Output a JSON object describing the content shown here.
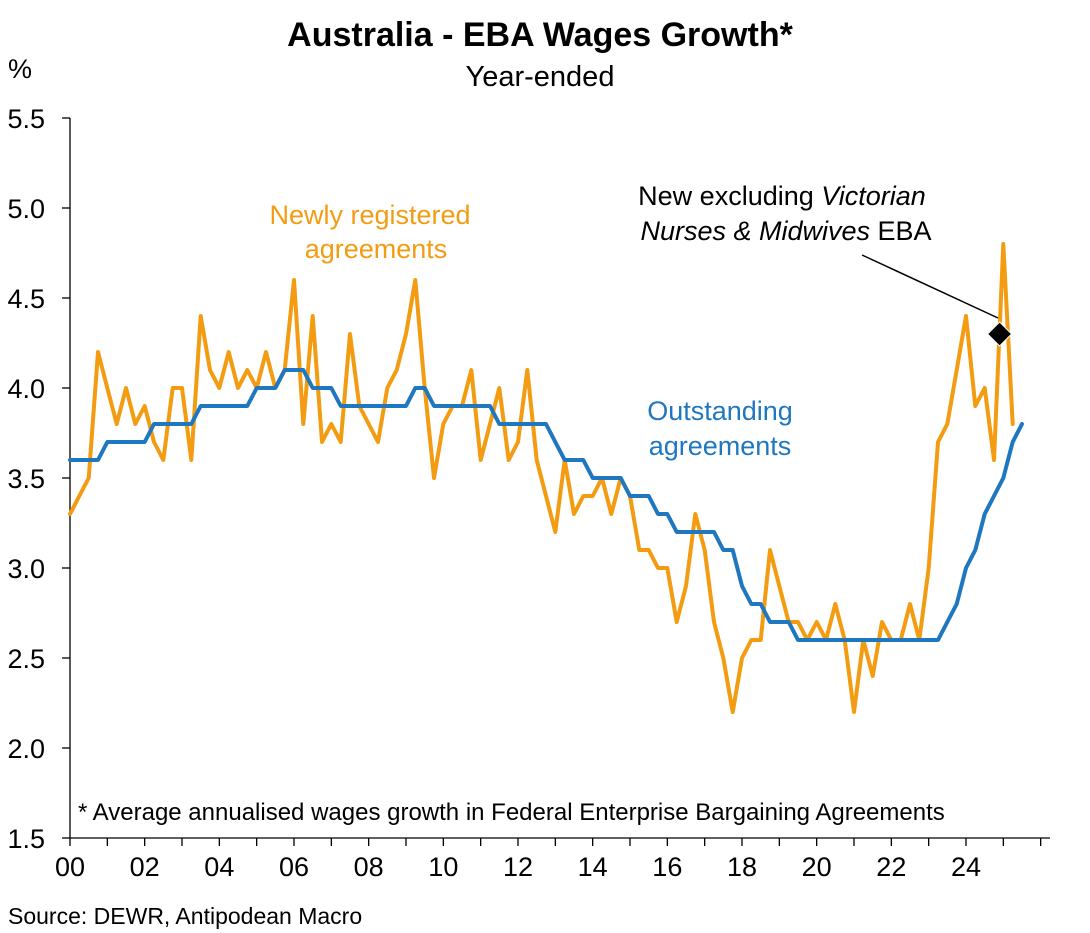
{
  "chart_data": {
    "type": "line",
    "title": "Australia - EBA Wages Growth*",
    "subtitle": "Year-ended",
    "ylabel": "%",
    "ylim": [
      1.5,
      5.5
    ],
    "yticks": [
      "1.5",
      "2.0",
      "2.5",
      "3.0",
      "3.5",
      "4.0",
      "4.5",
      "5.0",
      "5.5"
    ],
    "xlim": [
      2000.0,
      2026.25
    ],
    "xticks": [
      {
        "x": 2000,
        "label": "00"
      },
      {
        "x": 2002,
        "label": "02"
      },
      {
        "x": 2004,
        "label": "04"
      },
      {
        "x": 2006,
        "label": "06"
      },
      {
        "x": 2008,
        "label": "08"
      },
      {
        "x": 2010,
        "label": "10"
      },
      {
        "x": 2012,
        "label": "12"
      },
      {
        "x": 2014,
        "label": "14"
      },
      {
        "x": 2016,
        "label": "16"
      },
      {
        "x": 2018,
        "label": "18"
      },
      {
        "x": 2020,
        "label": "20"
      },
      {
        "x": 2022,
        "label": "22"
      },
      {
        "x": 2024,
        "label": "24"
      }
    ],
    "grid": false,
    "legend": "none",
    "x_start": 2000.0,
    "x_step": 0.25,
    "series": [
      {
        "name": "Newly registered agreements",
        "color": "#F39C12",
        "values": [
          3.3,
          3.4,
          3.5,
          4.2,
          4.0,
          3.8,
          4.0,
          3.8,
          3.9,
          3.7,
          3.6,
          4.0,
          4.0,
          3.6,
          4.4,
          4.1,
          4.0,
          4.2,
          4.0,
          4.1,
          4.0,
          4.2,
          4.0,
          4.1,
          4.6,
          3.8,
          4.4,
          3.7,
          3.8,
          3.7,
          4.3,
          3.9,
          3.8,
          3.7,
          4.0,
          4.1,
          4.3,
          4.6,
          4.0,
          3.5,
          3.8,
          3.9,
          3.9,
          4.1,
          3.6,
          3.8,
          4.0,
          3.6,
          3.7,
          4.1,
          3.6,
          3.4,
          3.2,
          3.6,
          3.3,
          3.4,
          3.4,
          3.5,
          3.3,
          3.5,
          3.4,
          3.1,
          3.1,
          3.0,
          3.0,
          2.7,
          2.9,
          3.3,
          3.1,
          2.7,
          2.5,
          2.2,
          2.5,
          2.6,
          2.6,
          3.1,
          2.9,
          2.7,
          2.7,
          2.6,
          2.7,
          2.6,
          2.8,
          2.6,
          2.2,
          2.6,
          2.4,
          2.7,
          2.6,
          2.6,
          2.8,
          2.6,
          3.0,
          3.7,
          3.8,
          4.1,
          4.4,
          3.9,
          4.0,
          3.6,
          4.8,
          3.8
        ]
      },
      {
        "name": "Outstanding agreements",
        "color": "#1F77C0",
        "values": [
          3.6,
          3.6,
          3.6,
          3.6,
          3.7,
          3.7,
          3.7,
          3.7,
          3.7,
          3.8,
          3.8,
          3.8,
          3.8,
          3.8,
          3.9,
          3.9,
          3.9,
          3.9,
          3.9,
          3.9,
          4.0,
          4.0,
          4.0,
          4.1,
          4.1,
          4.1,
          4.0,
          4.0,
          4.0,
          3.9,
          3.9,
          3.9,
          3.9,
          3.9,
          3.9,
          3.9,
          3.9,
          4.0,
          4.0,
          3.9,
          3.9,
          3.9,
          3.9,
          3.9,
          3.9,
          3.9,
          3.8,
          3.8,
          3.8,
          3.8,
          3.8,
          3.8,
          3.7,
          3.6,
          3.6,
          3.6,
          3.5,
          3.5,
          3.5,
          3.5,
          3.4,
          3.4,
          3.4,
          3.3,
          3.3,
          3.2,
          3.2,
          3.2,
          3.2,
          3.2,
          3.1,
          3.1,
          2.9,
          2.8,
          2.8,
          2.7,
          2.7,
          2.7,
          2.6,
          2.6,
          2.6,
          2.6,
          2.6,
          2.6,
          2.6,
          2.6,
          2.6,
          2.6,
          2.6,
          2.6,
          2.6,
          2.6,
          2.6,
          2.6,
          2.7,
          2.8,
          3.0,
          3.1,
          3.3,
          3.4,
          3.5,
          3.7,
          3.8
        ]
      }
    ],
    "marker": {
      "x": 2024.9,
      "y": 4.3,
      "shape": "diamond",
      "color": "#000000"
    },
    "annotations": {
      "newly": [
        "Newly registered",
        "agreements"
      ],
      "outstanding": [
        "Outstanding",
        "agreements"
      ],
      "excl_line1_a": "New excluding ",
      "excl_line1_b": "Victorian",
      "excl_line2_a": "Nurses & Midwives",
      "excl_line2_b": " EBA"
    },
    "footnote": "* Average annualised wages growth in Federal Enterprise Bargaining Agreements",
    "source": "Source: DEWR, Antipodean Macro"
  }
}
